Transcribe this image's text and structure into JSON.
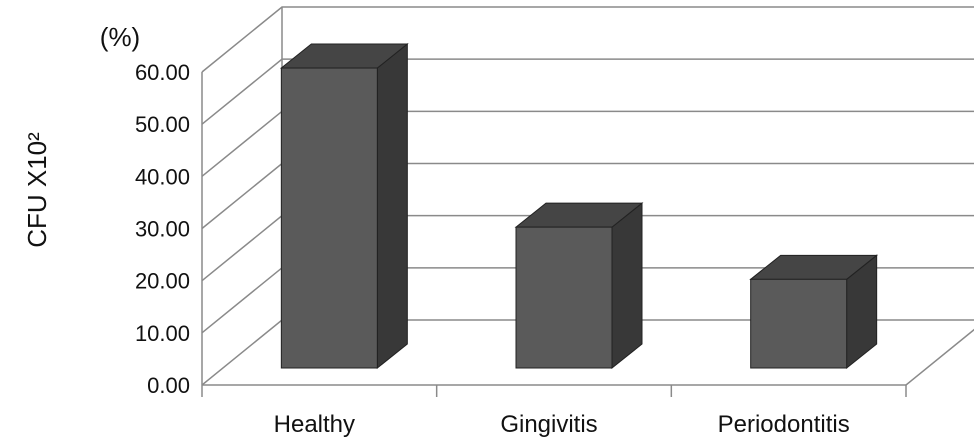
{
  "chart_data": {
    "type": "bar",
    "style": "3d-column",
    "title": "",
    "xlabel": "",
    "ylabel": "CFU X10²",
    "unit_label": "(%)",
    "categories": [
      "Healthy",
      "Gingivitis",
      "Periodontitis"
    ],
    "values": [
      57.5,
      27.0,
      17.0
    ],
    "yticks": [
      "0.00",
      "10.00",
      "20.00",
      "30.00",
      "40.00",
      "50.00",
      "60.00"
    ],
    "ylim": [
      0,
      60
    ],
    "grid": true,
    "legend": "none",
    "colors": {
      "bar_front": "#5a5a5a",
      "bar_side": "#383838",
      "bar_top": "#454545",
      "grid": "#8a8a8a"
    }
  }
}
